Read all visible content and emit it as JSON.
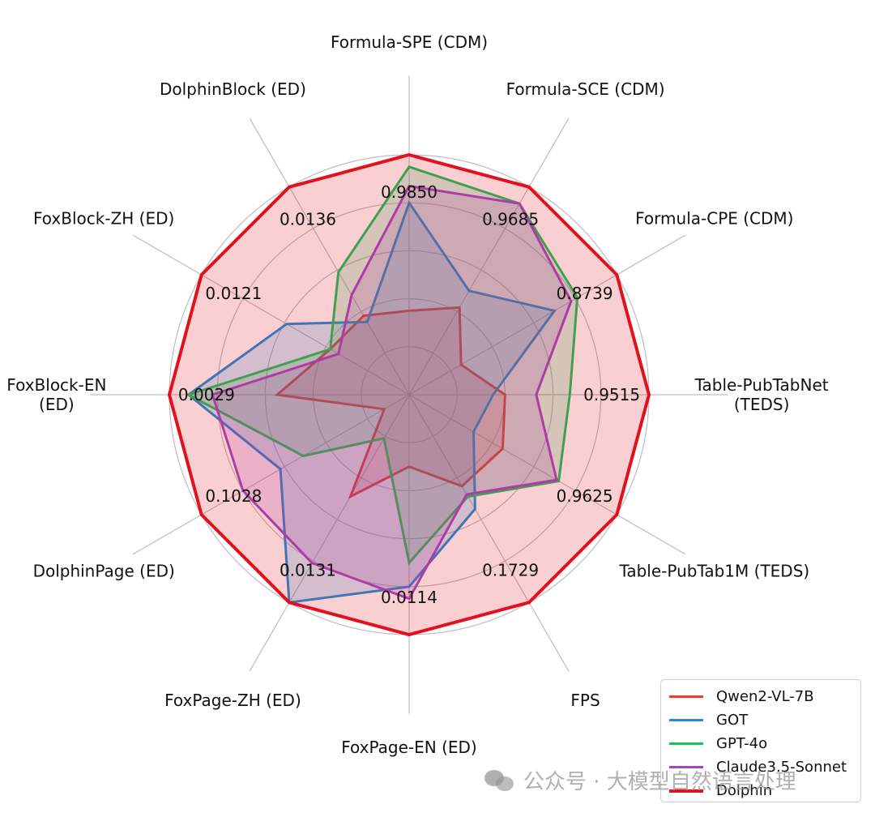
{
  "chart_data": {
    "type": "radar",
    "axes": [
      {
        "label": "Formula-SPE (CDM)",
        "max_label": "0.9850"
      },
      {
        "label": "Formula-SCE (CDM)",
        "max_label": "0.9685"
      },
      {
        "label": "Formula-CPE (CDM)",
        "max_label": "0.8739"
      },
      {
        "label": "Table-PubTabNet\n(TEDS)",
        "max_label": "0.9515"
      },
      {
        "label": "Table-PubTab1M (TEDS)",
        "max_label": "0.9625"
      },
      {
        "label": "FPS",
        "max_label": "0.1729"
      },
      {
        "label": "FoxPage-EN (ED)",
        "max_label": "0.0114"
      },
      {
        "label": "FoxPage-ZH (ED)",
        "max_label": "0.0131"
      },
      {
        "label": "DolphinPage (ED)",
        "max_label": "0.1028"
      },
      {
        "label": "FoxBlock-EN\n(ED)",
        "max_label": "0.0029"
      },
      {
        "label": "FoxBlock-ZH (ED)",
        "max_label": "0.0121"
      },
      {
        "label": "DolphinBlock (ED)",
        "max_label": "0.0136"
      }
    ],
    "rmax": 1.0,
    "grid_rings": [
      0.2,
      0.4,
      0.6,
      0.8,
      1.0
    ],
    "grid": true,
    "legend_position": "bottom-right",
    "series": [
      {
        "name": "Qwen2-VL-7B",
        "color": "#f03a2e",
        "values": [
          0.35,
          0.42,
          0.25,
          0.4,
          0.45,
          0.44,
          0.3,
          0.49,
          0.12,
          0.55,
          0.38,
          0.38
        ]
      },
      {
        "name": "GOT",
        "color": "#1b8fdd",
        "values": [
          0.8,
          0.5,
          0.7,
          0.35,
          0.31,
          0.55,
          0.8,
          1.0,
          0.62,
          0.92,
          0.59,
          0.35
        ]
      },
      {
        "name": "GPT-4o",
        "color": "#19c45f",
        "values": [
          0.95,
          0.92,
          0.81,
          0.67,
          0.72,
          0.49,
          0.7,
          0.21,
          0.51,
          0.92,
          0.38,
          0.59
        ]
      },
      {
        "name": "Claude3.5-Sonnet",
        "color": "#a347c8",
        "values": [
          0.87,
          0.92,
          0.78,
          0.53,
          0.71,
          0.48,
          0.85,
          0.81,
          0.8,
          0.82,
          0.34,
          0.48
        ]
      },
      {
        "name": "Dolphin",
        "color": "#e3101f",
        "values": [
          1.0,
          1.0,
          1.0,
          1.0,
          1.0,
          1.0,
          1.0,
          1.0,
          1.0,
          1.0,
          1.0,
          1.0
        ]
      }
    ]
  },
  "watermark": "公众号 · 大模型自然语言处理"
}
